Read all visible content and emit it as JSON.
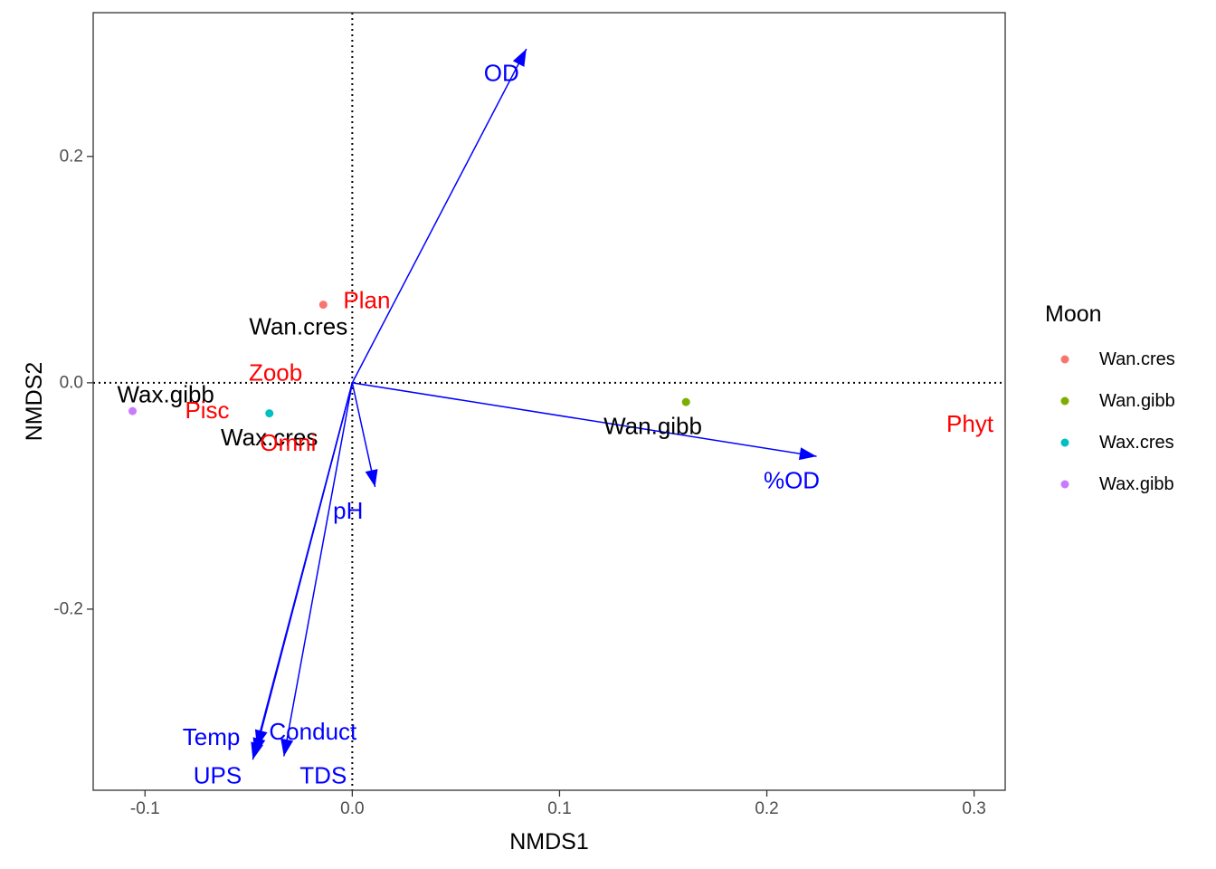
{
  "chart_data": {
    "type": "scatter",
    "xlabel": "NMDS1",
    "ylabel": "NMDS2",
    "xlim": [
      -0.125,
      0.315
    ],
    "ylim": [
      -0.36,
      0.327
    ],
    "x_ticks": [
      -0.1,
      0.0,
      0.1,
      0.2,
      0.3
    ],
    "x_tick_labels": [
      "-0.1",
      "0.0",
      "0.1",
      "0.2",
      "0.3"
    ],
    "y_ticks": [
      -0.2,
      0.0,
      0.2
    ],
    "y_tick_labels": [
      "-0.2",
      "0.0",
      "0.2"
    ],
    "grid": false,
    "reference_lines": {
      "x": 0,
      "y": 0,
      "style": "dotted"
    },
    "legend": {
      "title": "Moon",
      "position": "right",
      "entries": [
        {
          "name": "Wan.cres",
          "color": "#F8766D"
        },
        {
          "name": "Wan.gibb",
          "color": "#7CAE00"
        },
        {
          "name": "Wax.cres",
          "color": "#00BFC4"
        },
        {
          "name": "Wax.gibb",
          "color": "#C77CFF"
        }
      ]
    },
    "points": [
      {
        "name": "Wan.cres",
        "x": -0.014,
        "y": 0.069,
        "color": "#F8766D"
      },
      {
        "name": "Wan.gibb",
        "x": 0.161,
        "y": -0.017,
        "color": "#7CAE00"
      },
      {
        "name": "Wax.cres",
        "x": -0.04,
        "y": -0.027,
        "color": "#00BFC4"
      },
      {
        "name": "Wax.gibb",
        "x": -0.106,
        "y": -0.025,
        "color": "#C77CFF"
      }
    ],
    "site_labels": [
      {
        "text": "Wan.cres",
        "x": -0.026,
        "y": 0.05
      },
      {
        "text": "Wan.gibb",
        "x": 0.145,
        "y": -0.038
      },
      {
        "text": "Wax.cres",
        "x": -0.04,
        "y": -0.048
      },
      {
        "text": "Wax.gibb",
        "x": -0.09,
        "y": -0.01
      }
    ],
    "guild_labels": [
      {
        "text": "Plan",
        "x": 0.007,
        "y": 0.073,
        "color": "#ff0000"
      },
      {
        "text": "Zoob",
        "x": -0.037,
        "y": 0.009,
        "color": "#ff0000"
      },
      {
        "text": "Pisc",
        "x": -0.07,
        "y": -0.024,
        "color": "#ff0000"
      },
      {
        "text": "Omni",
        "x": -0.031,
        "y": -0.053,
        "color": "#ff0000"
      },
      {
        "text": "Phyt",
        "x": 0.298,
        "y": -0.036,
        "color": "#ff0000"
      }
    ],
    "env_vectors": [
      {
        "name": "OD",
        "x": 0.084,
        "y": 0.295,
        "label_x": 0.072,
        "label_y": 0.274
      },
      {
        "name": "%OD",
        "x": 0.224,
        "y": -0.065,
        "label_x": 0.212,
        "label_y": -0.086
      },
      {
        "name": "pH",
        "x": 0.011,
        "y": -0.092,
        "label_x": -0.002,
        "label_y": -0.113
      },
      {
        "name": "Conduct",
        "x": -0.046,
        "y": -0.322,
        "label_x": -0.019,
        "label_y": -0.308
      },
      {
        "name": "Temp",
        "x": -0.047,
        "y": -0.329,
        "label_x": -0.068,
        "label_y": -0.313
      },
      {
        "name": "UPS",
        "x": -0.048,
        "y": -0.333,
        "label_x": -0.065,
        "label_y": -0.347
      },
      {
        "name": "TDS",
        "x": -0.033,
        "y": -0.33,
        "label_x": -0.014,
        "label_y": -0.347
      }
    ],
    "colors": {
      "vector": "#0000ff",
      "guild": "#ff0000",
      "site": "#000000"
    }
  }
}
